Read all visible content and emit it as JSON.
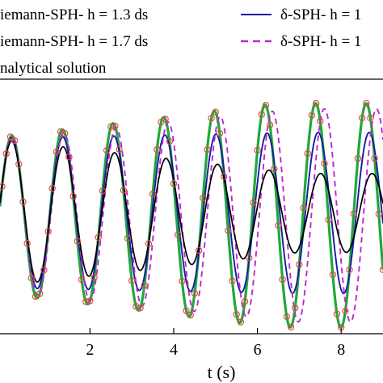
{
  "chart_data": {
    "type": "line",
    "xlabel": "t (s)",
    "xlim": [
      -0.15,
      9.0
    ],
    "xticks": [
      2,
      4,
      6,
      8
    ],
    "ylim": [
      -1.55,
      1.45
    ],
    "grid": false,
    "legend_position": "top",
    "legend": [
      {
        "label": "iemann-SPH- h = 1.3 ds",
        "color": "#000000",
        "style": "solid"
      },
      {
        "label": "iemann-SPH- h = 1.7 ds",
        "color": "#000000",
        "style": "solid"
      },
      {
        "label": "nalytical solution",
        "color": "#e8474a",
        "style": "circle"
      },
      {
        "label": "δ-SPH- h = 1",
        "color": "#1a1aa6",
        "style": "solid"
      },
      {
        "label": "δ-SPH- h = 1",
        "color": "#c026d3",
        "style": "dashed"
      }
    ],
    "series": [
      {
        "color": "#1fa83a",
        "width": 3.2,
        "dash": "",
        "period": 1.21,
        "phase": 0.13,
        "amp0": 1.0,
        "ampk": 0.065,
        "ampmax": 1.42,
        "offset": -0.05
      },
      {
        "color": "#1a1aa6",
        "width": 1.9,
        "dash": "",
        "period": 1.22,
        "phase": 0.13,
        "amp0": 0.95,
        "ampk": 0.01,
        "ampmax": 1.02,
        "offset": -0.02
      },
      {
        "color": "#c026d3",
        "width": 1.9,
        "dash": "7,5",
        "period": 1.245,
        "phase": 0.13,
        "amp0": 0.97,
        "ampk": 0.055,
        "ampmax": 1.35,
        "offset": -0.05
      },
      {
        "color": "#000000",
        "width": 1.7,
        "dash": "",
        "period": 1.23,
        "phase": 0.13,
        "amp0": 0.92,
        "ampk": -0.06,
        "ampmax": 0.92,
        "offset": -0.02
      }
    ],
    "analytical": {
      "color": "#e8474a",
      "period": 1.21,
      "phase": 0.13,
      "amp0": 1.0,
      "ampk": 0.065,
      "ampmax": 1.42,
      "offset": -0.05,
      "step": 0.1
    }
  }
}
